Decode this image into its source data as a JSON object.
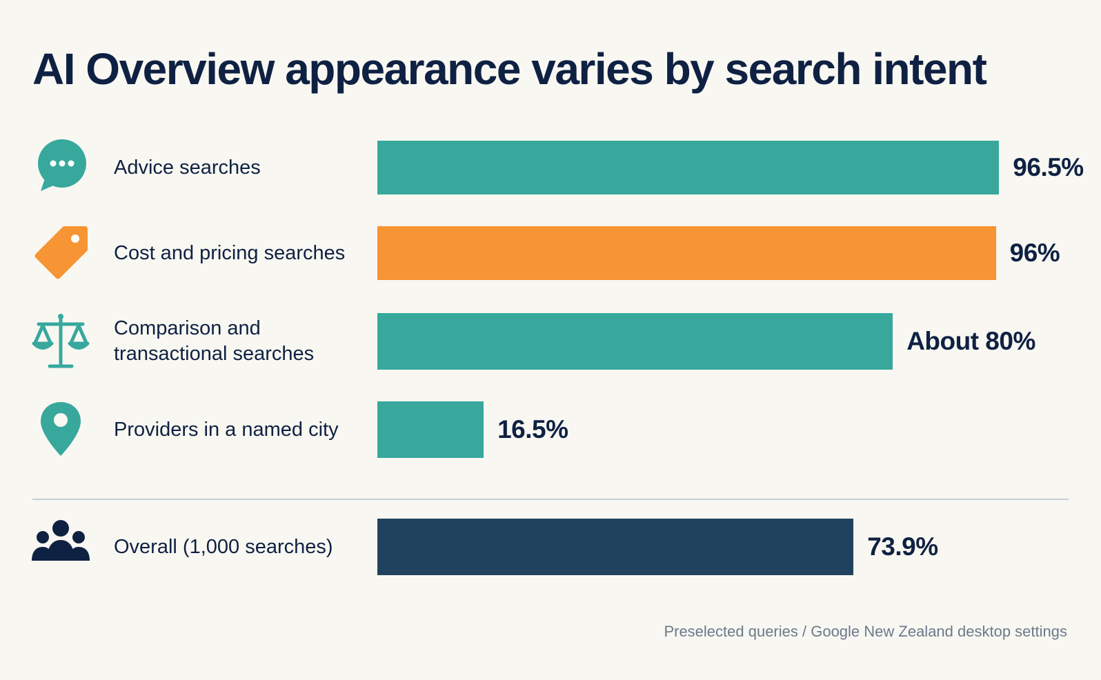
{
  "title": "AI Overview appearance varies by search intent",
  "footnote": "Preselected queries / Google New Zealand desktop settings",
  "colors": {
    "teal": "#38a89d",
    "orange": "#f79433",
    "navy": "#21425f",
    "text": "#0f2143",
    "muted": "#6b7a8c",
    "divider": "#c4cdd6",
    "background": "#f8f7f1"
  },
  "chart_data": {
    "type": "bar",
    "orientation": "horizontal",
    "title": "AI Overview appearance varies by search intent",
    "xlim": [
      0,
      100
    ],
    "grid": false,
    "legend": "none",
    "categories": [
      "Advice searches",
      "Cost and pricing searches",
      "Comparison and transactional searches",
      "Providers in a named city",
      "Overall (1,000 searches)"
    ],
    "values": [
      96.5,
      96,
      80,
      16.5,
      73.9
    ],
    "rows": [
      {
        "label_lines": [
          "Advice searches"
        ],
        "value": 96.5,
        "value_label": "96.5%",
        "color": "#38a89d",
        "icon": "speech-bubble-icon"
      },
      {
        "label_lines": [
          "Cost and pricing searches"
        ],
        "value": 96,
        "value_label": "96%",
        "color": "#f79433",
        "icon": "price-tag-icon"
      },
      {
        "label_lines": [
          "Comparison and",
          "transactional searches"
        ],
        "value": 80,
        "value_label": "About 80%",
        "color": "#38a89d",
        "icon": "balance-scale-icon"
      },
      {
        "label_lines": [
          "Providers in a named city"
        ],
        "value": 16.5,
        "value_label": "16.5%",
        "color": "#38a89d",
        "icon": "location-pin-icon"
      },
      {
        "label_lines": [
          "Overall (1,000 searches)"
        ],
        "value": 73.9,
        "value_label": "73.9%",
        "color": "#21425f",
        "icon": "people-group-icon"
      }
    ]
  }
}
